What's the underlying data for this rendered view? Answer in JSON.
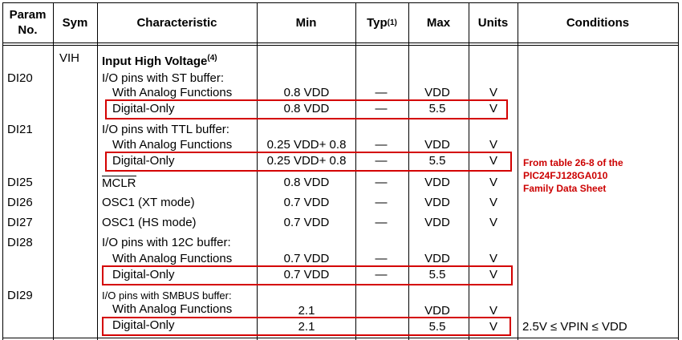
{
  "headers": {
    "param_line1": "Param",
    "param_line2": "No.",
    "sym": "Sym",
    "characteristic": "Characteristic",
    "min": "Min",
    "typ": "Typ",
    "typ_sup": "(1)",
    "max": "Max",
    "units": "Units",
    "conditions": "Conditions"
  },
  "section": {
    "sym": "VIH",
    "title": "Input High Voltage",
    "title_sup": "(4)"
  },
  "rows": {
    "di20": {
      "param": "DI20",
      "label": "I/O pins with ST buffer:"
    },
    "di20_analog": {
      "label": "With Analog Functions",
      "min": "0.8 VDD",
      "typ": "—",
      "max": "VDD",
      "units": "V"
    },
    "di20_digital": {
      "label": "Digital-Only",
      "min": "0.8 VDD",
      "typ": "—",
      "max": "5.5",
      "units": "V"
    },
    "di21": {
      "param": "DI21",
      "label": "I/O pins with TTL buffer:"
    },
    "di21_analog": {
      "label": "With Analog Functions",
      "min": "0.25 VDD+ 0.8",
      "typ": "—",
      "max": "VDD",
      "units": "V"
    },
    "di21_digital": {
      "label": "Digital-Only",
      "min": "0.25 VDD+ 0.8",
      "typ": "—",
      "max": "5.5",
      "units": "V"
    },
    "di25": {
      "param": "DI25",
      "label": "MCLR",
      "min": "0.8 VDD",
      "typ": "—",
      "max": "VDD",
      "units": "V"
    },
    "di26": {
      "param": "DI26",
      "label": "OSC1 (XT mode)",
      "min": "0.7 VDD",
      "typ": "—",
      "max": "VDD",
      "units": "V"
    },
    "di27": {
      "param": "DI27",
      "label": "OSC1 (HS mode)",
      "min": "0.7 VDD",
      "typ": "—",
      "max": "VDD",
      "units": "V"
    },
    "di28": {
      "param": "DI28",
      "label": "I/O pins with 12C buffer:"
    },
    "di28_analog": {
      "label": "With Analog Functions",
      "min": "0.7 VDD",
      "typ": "—",
      "max": "VDD",
      "units": "V"
    },
    "di28_digital": {
      "label": "Digital-Only",
      "min": "0.7 VDD",
      "typ": "—",
      "max": "5.5",
      "units": "V"
    },
    "di29": {
      "param": "DI29",
      "label": "I/O pins with SMBUS buffer:"
    },
    "di29_analog": {
      "label": "With Analog Functions",
      "min": "2.1",
      "max": "VDD",
      "units": "V"
    },
    "di29_digital": {
      "label": "Digital-Only",
      "min": "2.1",
      "max": "5.5",
      "units": "V",
      "conditions": "2.5V ≤ VPIN ≤ VDD"
    }
  },
  "annotation": {
    "line1": "From table 26-8 of the",
    "line2": "PIC24FJ128GA010",
    "line3": "Family Data Sheet"
  },
  "colors": {
    "highlight": "#d40000",
    "annotation": "#cc0000"
  }
}
